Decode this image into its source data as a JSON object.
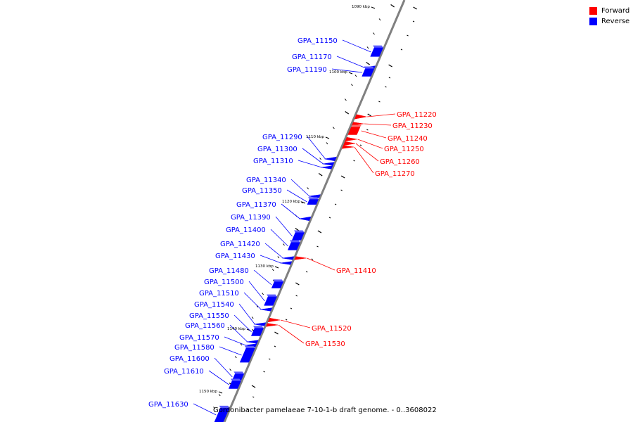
{
  "legend": {
    "forward_label": "Forward",
    "reverse_label": "Reverse",
    "forward_color": "#ff0000",
    "reverse_color": "#0000ff"
  },
  "caption": "Gordonibacter pamelaeae 7-10-1-b draft genome. - 0..3608022",
  "axis": {
    "unit": "kbp",
    "tick_labels": [
      "1090 kbp",
      "1100 kbp",
      "1110 kbp",
      "1120 kbp",
      "1130 kbp",
      "1140 kbp",
      "1150 kbp"
    ]
  },
  "genes": [
    {
      "name": "GPA_11150",
      "strand": "reverse"
    },
    {
      "name": "GPA_11170",
      "strand": "reverse"
    },
    {
      "name": "GPA_11190",
      "strand": "reverse"
    },
    {
      "name": "GPA_11220",
      "strand": "forward"
    },
    {
      "name": "GPA_11230",
      "strand": "forward"
    },
    {
      "name": "GPA_11240",
      "strand": "forward"
    },
    {
      "name": "GPA_11250",
      "strand": "forward"
    },
    {
      "name": "GPA_11260",
      "strand": "forward"
    },
    {
      "name": "GPA_11270",
      "strand": "forward"
    },
    {
      "name": "GPA_11290",
      "strand": "reverse"
    },
    {
      "name": "GPA_11300",
      "strand": "reverse"
    },
    {
      "name": "GPA_11310",
      "strand": "reverse"
    },
    {
      "name": "GPA_11340",
      "strand": "reverse"
    },
    {
      "name": "GPA_11350",
      "strand": "reverse"
    },
    {
      "name": "GPA_11370",
      "strand": "reverse"
    },
    {
      "name": "GPA_11390",
      "strand": "reverse"
    },
    {
      "name": "GPA_11400",
      "strand": "reverse"
    },
    {
      "name": "GPA_11410",
      "strand": "forward"
    },
    {
      "name": "GPA_11420",
      "strand": "reverse"
    },
    {
      "name": "GPA_11430",
      "strand": "reverse"
    },
    {
      "name": "GPA_11480",
      "strand": "reverse"
    },
    {
      "name": "GPA_11500",
      "strand": "reverse"
    },
    {
      "name": "GPA_11510",
      "strand": "reverse"
    },
    {
      "name": "GPA_11520",
      "strand": "forward"
    },
    {
      "name": "GPA_11530",
      "strand": "forward"
    },
    {
      "name": "GPA_11540",
      "strand": "reverse"
    },
    {
      "name": "GPA_11550",
      "strand": "reverse"
    },
    {
      "name": "GPA_11560",
      "strand": "reverse"
    },
    {
      "name": "GPA_11570",
      "strand": "reverse"
    },
    {
      "name": "GPA_11580",
      "strand": "reverse"
    },
    {
      "name": "GPA_11600",
      "strand": "reverse"
    },
    {
      "name": "GPA_11610",
      "strand": "reverse"
    },
    {
      "name": "GPA_11630",
      "strand": "reverse"
    }
  ]
}
